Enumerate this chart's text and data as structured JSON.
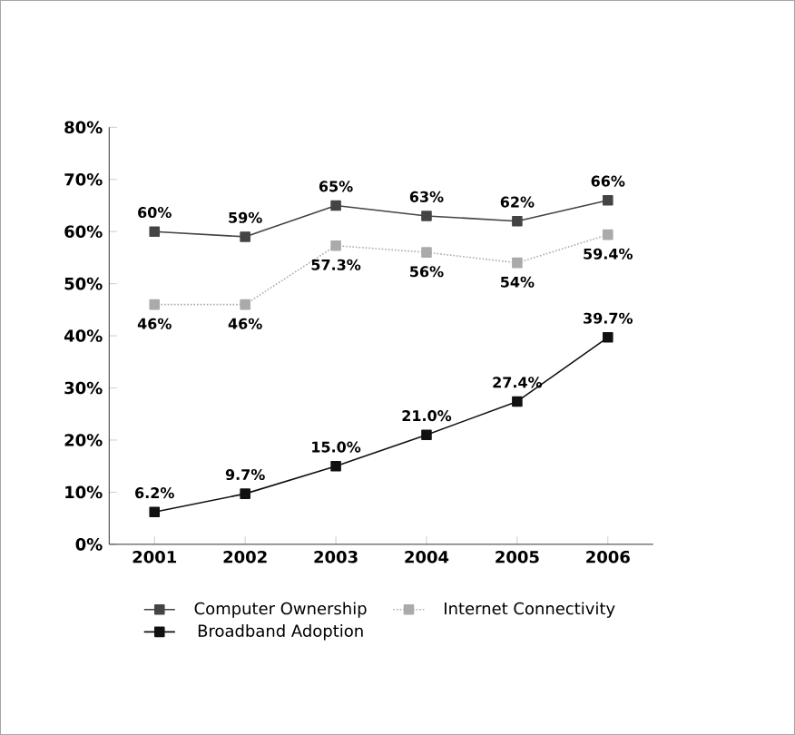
{
  "chart_data": {
    "type": "line",
    "categories": [
      "2001",
      "2002",
      "2003",
      "2004",
      "2005",
      "2006"
    ],
    "series": [
      {
        "name": "Computer Ownership",
        "color": "#444444",
        "line_style": "solid",
        "values": [
          60,
          59,
          65,
          63,
          62,
          66
        ],
        "value_labels": [
          "60%",
          "59%",
          "65%",
          "63%",
          "62%",
          "66%"
        ]
      },
      {
        "name": "Internet Connectivity",
        "color": "#aaaaaa",
        "line_style": "dotted",
        "values": [
          46,
          46,
          57.3,
          56,
          54,
          59.4
        ],
        "value_labels": [
          "46%",
          "46%",
          "57.3%",
          "56%",
          "54%",
          "59.4%"
        ]
      },
      {
        "name": "Broadband Adoption",
        "color": "#111111",
        "line_style": "solid",
        "values": [
          6.2,
          9.7,
          15.0,
          21.0,
          27.4,
          39.7
        ],
        "value_labels": [
          "6.2%",
          "9.7%",
          "15.0%",
          "21.0%",
          "27.4%",
          "39.7%"
        ]
      }
    ],
    "ylim": [
      0,
      80
    ],
    "yticks": [
      {
        "value": 0,
        "label": "0%"
      },
      {
        "value": 10,
        "label": "10%"
      },
      {
        "value": 20,
        "label": "20%"
      },
      {
        "value": 30,
        "label": "30%"
      },
      {
        "value": 40,
        "label": "40%"
      },
      {
        "value": 50,
        "label": "50%"
      },
      {
        "value": 60,
        "label": "60%"
      },
      {
        "value": 70,
        "label": "70%"
      },
      {
        "value": 80,
        "label": "80%"
      }
    ],
    "marker": "square",
    "legend": "bottom",
    "grid": false
  }
}
